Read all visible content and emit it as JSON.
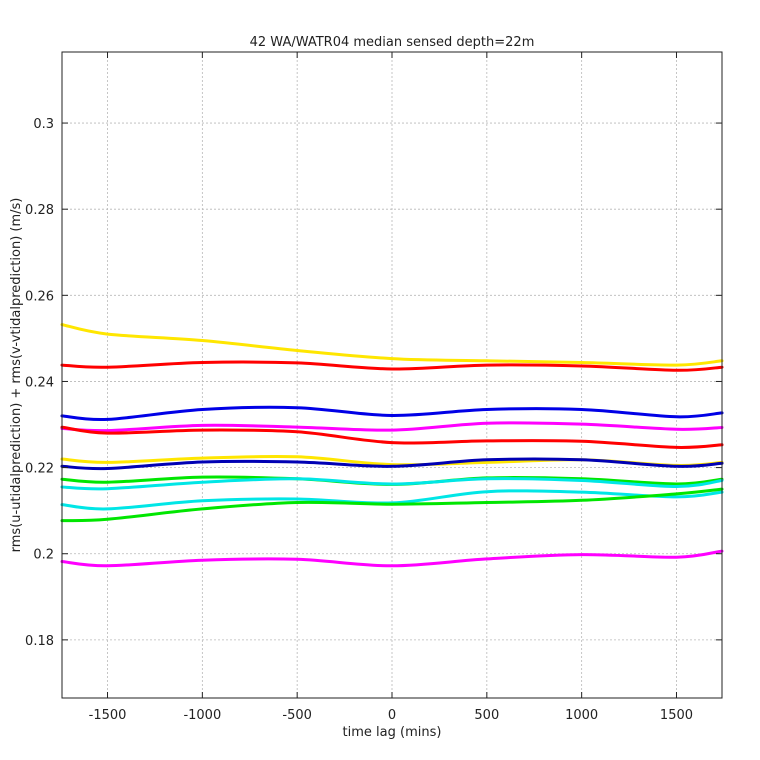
{
  "chart_data": {
    "type": "line",
    "title": "42 WA/WATR04 median sensed depth=22m",
    "xlabel": "time lag (mins)",
    "ylabel": "rms(u-utidalprediction) + rms(v-vtidalprediction) (m/s)",
    "xlim": [
      -1740,
      1740
    ],
    "ylim": [
      0.1665,
      0.3165
    ],
    "xticks": [
      -1500,
      -1000,
      -500,
      0,
      500,
      1000,
      1500
    ],
    "xtick_labels": [
      "-1500",
      "-1000",
      "-500",
      "0",
      "500",
      "1000",
      "1500"
    ],
    "yticks": [
      0.18,
      0.2,
      0.22,
      0.24,
      0.26,
      0.28,
      0.3
    ],
    "ytick_labels": [
      "0.18",
      "0.2",
      "0.22",
      "0.24",
      "0.26",
      "0.28",
      "0.3"
    ],
    "grid": true,
    "x": [
      -1740,
      -1500,
      -1000,
      -500,
      0,
      500,
      1000,
      1500,
      1740
    ],
    "series": [
      {
        "color": "#ffe600",
        "values": [
          0.2532,
          0.251,
          0.2495,
          0.2472,
          0.2453,
          0.2448,
          0.2444,
          0.2438,
          0.2448
        ]
      },
      {
        "color": "#ff0000",
        "values": [
          0.2438,
          0.2433,
          0.2444,
          0.2443,
          0.2429,
          0.2438,
          0.2436,
          0.2426,
          0.2433
        ]
      },
      {
        "color": "#0000e6",
        "values": [
          0.232,
          0.2312,
          0.2335,
          0.2339,
          0.2321,
          0.2335,
          0.2335,
          0.2318,
          0.2327
        ]
      },
      {
        "color": "#ff00ff",
        "values": [
          0.2291,
          0.2286,
          0.2298,
          0.2294,
          0.2287,
          0.2303,
          0.2301,
          0.2289,
          0.2293
        ]
      },
      {
        "color": "#ff0000",
        "values": [
          0.2294,
          0.228,
          0.2287,
          0.2283,
          0.2258,
          0.2262,
          0.2261,
          0.2247,
          0.2253
        ]
      },
      {
        "color": "#ffe600",
        "values": [
          0.222,
          0.2212,
          0.2222,
          0.2225,
          0.2207,
          0.2212,
          0.2218,
          0.2205,
          0.2212
        ]
      },
      {
        "color": "#0000b4",
        "values": [
          0.2203,
          0.2198,
          0.2213,
          0.2213,
          0.2203,
          0.2218,
          0.2218,
          0.2203,
          0.221
        ]
      },
      {
        "color": "#00e600",
        "values": [
          0.2173,
          0.2166,
          0.2178,
          0.2174,
          0.2161,
          0.2176,
          0.2174,
          0.2162,
          0.2173
        ]
      },
      {
        "color": "#00e6e6",
        "values": [
          0.2155,
          0.2151,
          0.2166,
          0.2174,
          0.2162,
          0.2174,
          0.217,
          0.2156,
          0.217
        ]
      },
      {
        "color": "#00e6e6",
        "values": [
          0.2114,
          0.2104,
          0.2123,
          0.2127,
          0.2118,
          0.2144,
          0.2143,
          0.2132,
          0.2143
        ]
      },
      {
        "color": "#00e600",
        "values": [
          0.2077,
          0.208,
          0.2104,
          0.2119,
          0.2115,
          0.2119,
          0.2124,
          0.2139,
          0.215
        ]
      },
      {
        "color": "#ff00ff",
        "values": [
          0.1982,
          0.1972,
          0.1985,
          0.1987,
          0.1972,
          0.1988,
          0.1998,
          0.1992,
          0.2006
        ]
      }
    ]
  }
}
